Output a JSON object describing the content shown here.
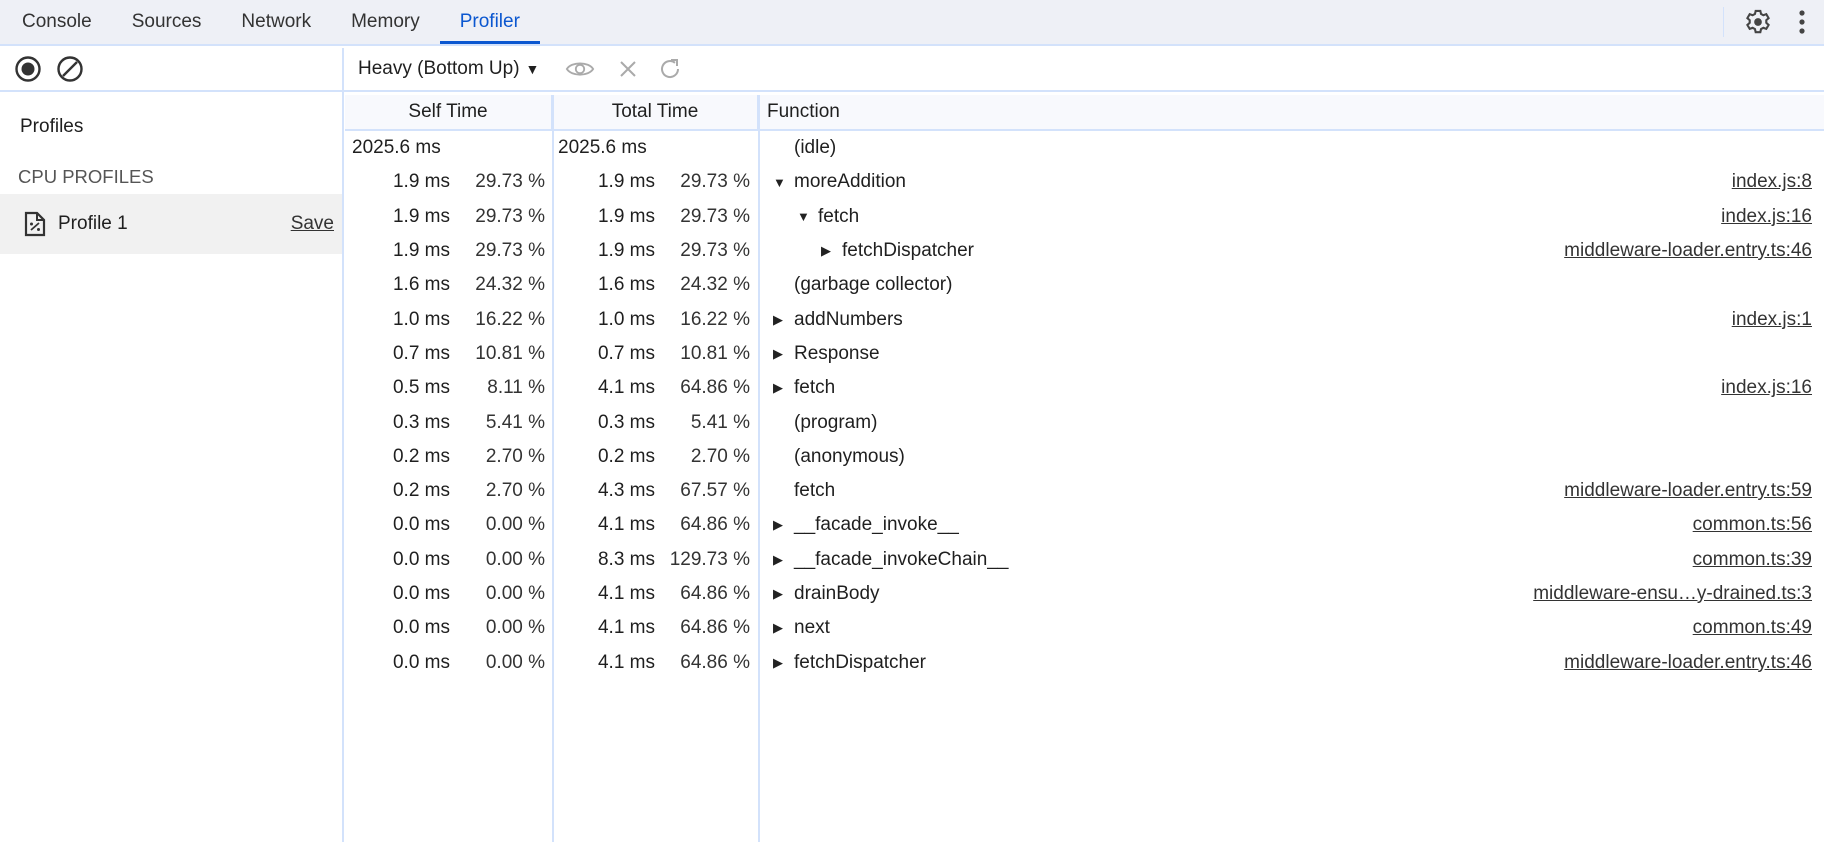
{
  "tabs": [
    {
      "label": "Console"
    },
    {
      "label": "Sources"
    },
    {
      "label": "Network"
    },
    {
      "label": "Memory"
    },
    {
      "label": "Profiler",
      "active": true
    }
  ],
  "accent": "#0b57d0",
  "icons": {
    "record": "record-icon",
    "clear": "clear-icon",
    "settings": "gear-icon",
    "more": "more-vert-icon",
    "focus": "eye-icon",
    "exclude": "close-icon",
    "restore": "refresh-icon",
    "profile": "profile-file-icon"
  },
  "toolbar": {
    "view_select": "Heavy (Bottom Up)"
  },
  "sidebar": {
    "title": "Profiles",
    "section": "CPU PROFILES",
    "profiles": [
      {
        "name": "Profile 1",
        "save": "Save"
      }
    ]
  },
  "table": {
    "headers": [
      "Self Time",
      "Total Time",
      "Function"
    ],
    "rows": [
      {
        "self": "2025.6 ms",
        "self_pct": "",
        "total": "2025.6 ms",
        "total_pct": "",
        "fn": "(idle)",
        "level": 0,
        "arrow": "",
        "link": ""
      },
      {
        "self": "1.9 ms",
        "self_pct": "29.73 %",
        "total": "1.9 ms",
        "total_pct": "29.73 %",
        "fn": "moreAddition",
        "level": 0,
        "arrow": "expanded",
        "link": "index.js:8"
      },
      {
        "self": "1.9 ms",
        "self_pct": "29.73 %",
        "total": "1.9 ms",
        "total_pct": "29.73 %",
        "fn": "fetch",
        "level": 1,
        "arrow": "expanded",
        "link": "index.js:16"
      },
      {
        "self": "1.9 ms",
        "self_pct": "29.73 %",
        "total": "1.9 ms",
        "total_pct": "29.73 %",
        "fn": "fetchDispatcher",
        "level": 2,
        "arrow": "collapsed",
        "link": "middleware-loader.entry.ts:46"
      },
      {
        "self": "1.6 ms",
        "self_pct": "24.32 %",
        "total": "1.6 ms",
        "total_pct": "24.32 %",
        "fn": "(garbage collector)",
        "level": 0,
        "arrow": "",
        "link": ""
      },
      {
        "self": "1.0 ms",
        "self_pct": "16.22 %",
        "total": "1.0 ms",
        "total_pct": "16.22 %",
        "fn": "addNumbers",
        "level": 0,
        "arrow": "collapsed",
        "link": "index.js:1"
      },
      {
        "self": "0.7 ms",
        "self_pct": "10.81 %",
        "total": "0.7 ms",
        "total_pct": "10.81 %",
        "fn": "Response",
        "level": 0,
        "arrow": "collapsed",
        "link": ""
      },
      {
        "self": "0.5 ms",
        "self_pct": "8.11 %",
        "total": "4.1 ms",
        "total_pct": "64.86 %",
        "fn": "fetch",
        "level": 0,
        "arrow": "collapsed",
        "link": "index.js:16"
      },
      {
        "self": "0.3 ms",
        "self_pct": "5.41 %",
        "total": "0.3 ms",
        "total_pct": "5.41 %",
        "fn": "(program)",
        "level": 0,
        "arrow": "",
        "link": ""
      },
      {
        "self": "0.2 ms",
        "self_pct": "2.70 %",
        "total": "0.2 ms",
        "total_pct": "2.70 %",
        "fn": "(anonymous)",
        "level": 0,
        "arrow": "",
        "link": ""
      },
      {
        "self": "0.2 ms",
        "self_pct": "2.70 %",
        "total": "4.3 ms",
        "total_pct": "67.57 %",
        "fn": "fetch",
        "level": 0,
        "arrow": "",
        "link": "middleware-loader.entry.ts:59"
      },
      {
        "self": "0.0 ms",
        "self_pct": "0.00 %",
        "total": "4.1 ms",
        "total_pct": "64.86 %",
        "fn": "__facade_invoke__",
        "level": 0,
        "arrow": "collapsed",
        "link": "common.ts:56"
      },
      {
        "self": "0.0 ms",
        "self_pct": "0.00 %",
        "total": "8.3 ms",
        "total_pct": "129.73 %",
        "fn": "__facade_invokeChain__",
        "level": 0,
        "arrow": "collapsed",
        "link": "common.ts:39"
      },
      {
        "self": "0.0 ms",
        "self_pct": "0.00 %",
        "total": "4.1 ms",
        "total_pct": "64.86 %",
        "fn": "drainBody",
        "level": 0,
        "arrow": "collapsed",
        "link": "middleware-ensu…y-drained.ts:3"
      },
      {
        "self": "0.0 ms",
        "self_pct": "0.00 %",
        "total": "4.1 ms",
        "total_pct": "64.86 %",
        "fn": "next",
        "level": 0,
        "arrow": "collapsed",
        "link": "common.ts:49"
      },
      {
        "self": "0.0 ms",
        "self_pct": "0.00 %",
        "total": "4.1 ms",
        "total_pct": "64.86 %",
        "fn": "fetchDispatcher",
        "level": 0,
        "arrow": "collapsed",
        "link": "middleware-loader.entry.ts:46"
      }
    ]
  }
}
